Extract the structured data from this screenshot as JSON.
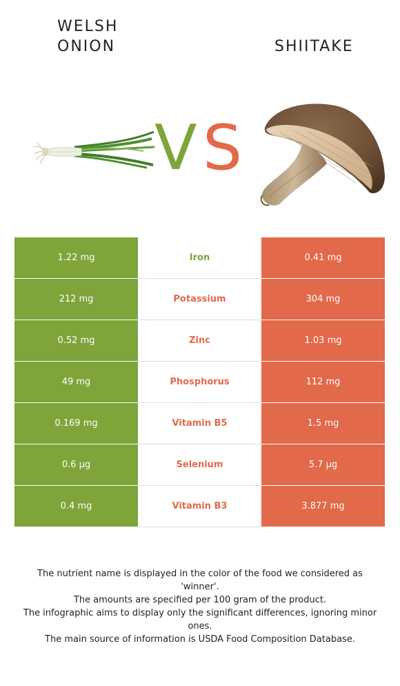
{
  "colors": {
    "left_food": "#7ea43a",
    "right_food": "#e2694a"
  },
  "foods": {
    "left": {
      "title_lines": [
        "WELSH",
        "ONION"
      ],
      "image_icon": "welsh-onion-image"
    },
    "right": {
      "title_lines": [
        "SHIITAKE"
      ],
      "image_icon": "shiitake-mushroom-image"
    }
  },
  "vs": {
    "v": "V",
    "s": "S"
  },
  "table": {
    "rows": [
      {
        "nutrient": "Iron",
        "left": "1.22 mg",
        "right": "0.41 mg",
        "winner": "left"
      },
      {
        "nutrient": "Potassium",
        "left": "212 mg",
        "right": "304 mg",
        "winner": "right"
      },
      {
        "nutrient": "Zinc",
        "left": "0.52 mg",
        "right": "1.03 mg",
        "winner": "right"
      },
      {
        "nutrient": "Phosphorus",
        "left": "49 mg",
        "right": "112 mg",
        "winner": "right"
      },
      {
        "nutrient": "Vitamin B5",
        "left": "0.169 mg",
        "right": "1.5 mg",
        "winner": "right"
      },
      {
        "nutrient": "Selenium",
        "left": "0.6 µg",
        "right": "5.7 µg",
        "winner": "right"
      },
      {
        "nutrient": "Vitamin B3",
        "left": "0.4 mg",
        "right": "3.877 mg",
        "winner": "right"
      }
    ]
  },
  "footnote": {
    "lines": [
      "The nutrient name is displayed in the color of the food we considered as 'winner'.",
      "The amounts are specified per 100 gram of the product.",
      "The infographic aims to display only the significant differences, ignoring minor ones.",
      "The main source of information is USDA Food Composition Database."
    ]
  }
}
